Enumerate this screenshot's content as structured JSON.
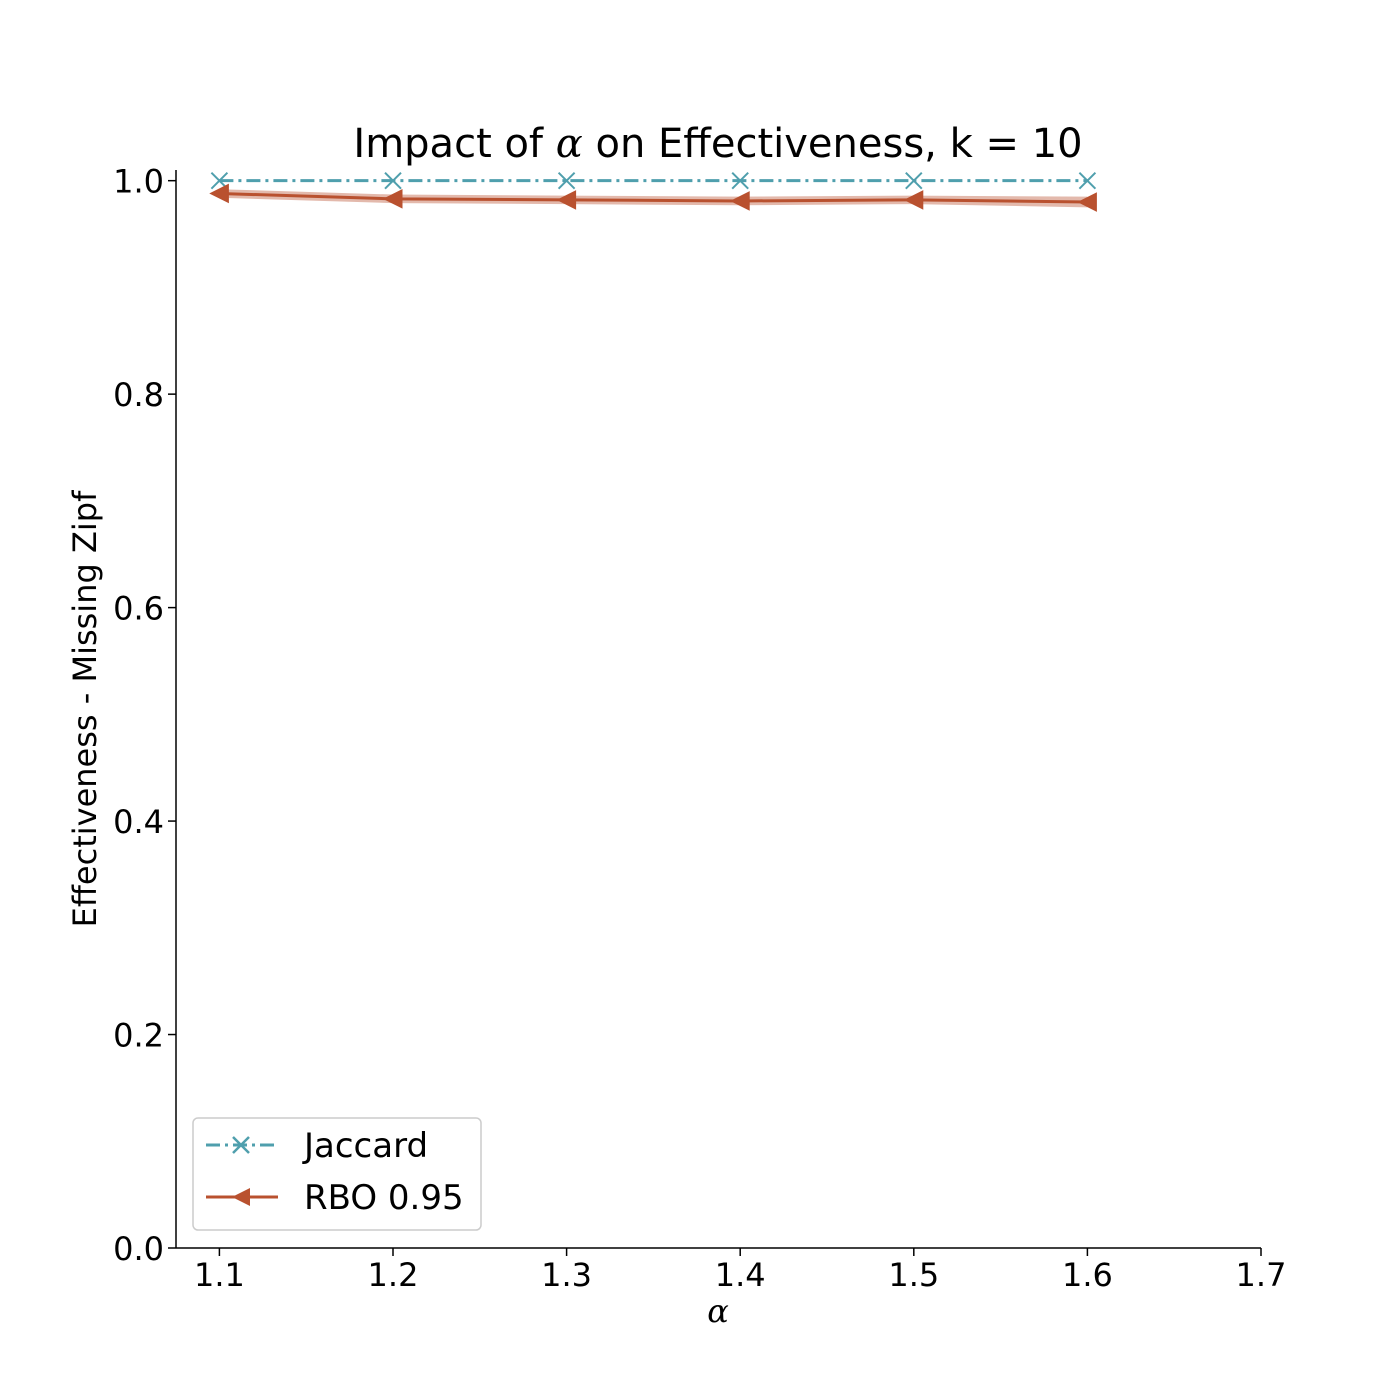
{
  "chart_data": {
    "type": "line",
    "title_prefix": "Impact of ",
    "title_symbol": "α",
    "title_suffix": " on Effectiveness, k = 10",
    "xlabel": "α",
    "ylabel": "Effectiveness - Missing Zipf",
    "xlim": [
      1.075,
      1.7
    ],
    "ylim": [
      0.0,
      1.01
    ],
    "xticks": [
      "1.1",
      "1.2",
      "1.3",
      "1.4",
      "1.5",
      "1.6",
      "1.7"
    ],
    "yticks": [
      "0.0",
      "0.2",
      "0.4",
      "0.6",
      "0.8",
      "1.0"
    ],
    "x": [
      1.1,
      1.2,
      1.3,
      1.4,
      1.5,
      1.6
    ],
    "legend_position": "lower-left",
    "series": [
      {
        "name": "Jaccard",
        "values": [
          1.0,
          1.0,
          1.0,
          1.0,
          1.0,
          1.0
        ],
        "band": [
          0.0,
          0.0,
          0.0,
          0.0,
          0.0,
          0.0
        ],
        "color": "#4f9fad",
        "marker": "x",
        "linestyle": "dashdot"
      },
      {
        "name": "RBO 0.95",
        "values": [
          0.988,
          0.983,
          0.982,
          0.981,
          0.982,
          0.98
        ],
        "band": [
          0.004,
          0.004,
          0.004,
          0.004,
          0.004,
          0.005
        ],
        "color": "#b9512f",
        "marker": "triangle-left",
        "linestyle": "solid"
      }
    ]
  }
}
